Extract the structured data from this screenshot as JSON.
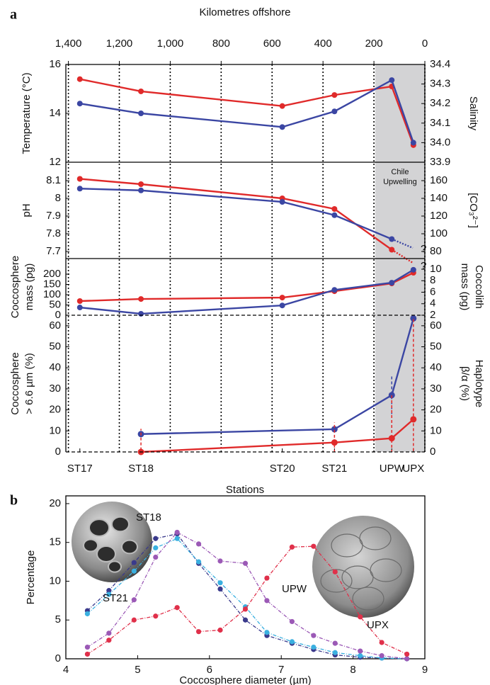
{
  "panel_a": {
    "label": "a",
    "xlabel": "Kilometres offshore",
    "xlim": [
      1410,
      0
    ],
    "xticks": [
      {
        "value": 1400,
        "label": "1,400"
      },
      {
        "value": 1200,
        "label": "1,200"
      },
      {
        "value": 1000,
        "label": "1,000"
      },
      800,
      600,
      400,
      200,
      0
    ],
    "grid": true,
    "x_station": [
      1355,
      1115,
      560,
      355,
      130,
      45
    ],
    "stations": [
      "ST17",
      "ST18",
      "ST20",
      "ST21",
      "UPW",
      "UPX"
    ],
    "stations_label": "Stations",
    "shade": [
      195,
      0
    ],
    "shade_label": [
      "Chile",
      "Upwelling"
    ],
    "shade_color": "#d3d3d5"
  },
  "panel_b": {
    "label": "b"
  },
  "chart_data": [
    {
      "type": "line",
      "ylabel": "Temperature (°C)",
      "y2label": "Salinity",
      "ylim": [
        12,
        16
      ],
      "yticks": [
        12,
        14,
        16
      ],
      "y2lim": [
        33.9,
        34.4
      ],
      "y2ticks": [
        33.9,
        {
          "value": 34,
          "label": "34.0"
        },
        34.1,
        34.2,
        34.3,
        34.4
      ],
      "series": [
        {
          "color": "#e02a2a",
          "values": [
            15.4,
            14.9,
            14.3,
            14.75,
            15.1,
            12.7
          ]
        },
        {
          "color": "#3b46a3",
          "axis": "y2",
          "values": [
            34.2,
            34.15,
            34.08,
            34.16,
            34.32,
            34.0
          ]
        }
      ]
    },
    {
      "type": "line",
      "ylabel": "pH",
      "y2label": "[CO₃²⁻]",
      "ylim": [
        7.66,
        8.204
      ],
      "yticks": [
        7.7,
        7.8,
        7.9,
        8,
        8.1
      ],
      "y2lim": [
        72,
        180.8
      ],
      "y2ticks": [
        80,
        100,
        120,
        140,
        160
      ],
      "series": [
        {
          "color": "#e02a2a",
          "values": [
            8.11,
            8.08,
            8.0,
            7.94,
            7.71,
            null
          ]
        },
        {
          "color": "#3b46a3",
          "axis": "y2",
          "values": [
            151,
            149,
            136,
            121,
            94,
            null
          ]
        }
      ],
      "annotations": [
        "?",
        "?"
      ]
    },
    {
      "type": "line",
      "ylabel": [
        "Coccosphere",
        "mass (pg)"
      ],
      "y2label": [
        "Coccolith",
        "mass (pg)"
      ],
      "ylim": [
        0,
        276
      ],
      "yticks": [
        0,
        50,
        100,
        150,
        200
      ],
      "y2lim": [
        2,
        11.85
      ],
      "y2ticks": [
        2,
        4,
        6,
        8,
        10
      ],
      "series": [
        {
          "color": "#e02a2a",
          "values": [
            69,
            79,
            86,
            117,
            155,
            207
          ]
        },
        {
          "color": "#3b46a3",
          "axis": "y2",
          "values": [
            3.35,
            2.25,
            3.7,
            6.4,
            7.65,
            9.9
          ]
        }
      ]
    },
    {
      "type": "line",
      "ylabel": [
        "Coccosphere",
        "> 6.6 µm (%)"
      ],
      "y2label": [
        "Haplotype",
        "β/α (%)"
      ],
      "x": [
        1115,
        355,
        130,
        45
      ],
      "ylim": [
        0,
        65
      ],
      "yticks": [
        0,
        10,
        20,
        30,
        40,
        50,
        60
      ],
      "y2lim": [
        0,
        65
      ],
      "y2ticks": [
        0,
        10,
        20,
        30,
        40,
        50,
        60
      ],
      "series": [
        {
          "color": "#3b46a3",
          "values": [
            8.5,
            10.8,
            27,
            63.5
          ],
          "errors": [
            null,
            null,
            9,
            null
          ]
        },
        {
          "color": "#e02a2a",
          "axis": "y2",
          "values": [
            0,
            4.5,
            6.5,
            15.5
          ],
          "errors": [
            11,
            9.5,
            21,
            48
          ]
        }
      ]
    },
    {
      "type": "line",
      "ylabel": "Percentage",
      "xlabel": "Coccosphere diameter (µm)",
      "xlim": [
        4,
        9
      ],
      "xticks": [
        4,
        5,
        6,
        7,
        8,
        9
      ],
      "ylim": [
        0,
        21
      ],
      "yticks": [
        0,
        5,
        10,
        15,
        20
      ],
      "x": [
        4.3,
        4.6,
        4.95,
        5.25,
        5.55,
        5.85,
        6.15,
        6.5,
        6.8,
        7.15,
        7.45,
        7.75,
        8.1,
        8.4,
        8.75
      ],
      "series": [
        {
          "name": "ST18",
          "color": "#3a3a8c",
          "values": [
            6.2,
            8.8,
            12.4,
            15.5,
            16.1,
            12.3,
            9.0,
            5.0,
            3.0,
            2.0,
            1.2,
            0.5,
            0.2,
            0.1,
            0
          ]
        },
        {
          "name": "ST21",
          "color": "#3ab0e0",
          "values": [
            5.8,
            8.3,
            11.3,
            14.3,
            15.5,
            12.5,
            9.8,
            6.7,
            3.4,
            2.2,
            1.5,
            0.8,
            0.4,
            0.1,
            0
          ]
        },
        {
          "name": "UPW",
          "color": "#9b59b6",
          "values": [
            1.5,
            3.3,
            7.6,
            13.1,
            16.3,
            14.8,
            12.6,
            12.3,
            7.5,
            4.8,
            3.0,
            2.0,
            1.0,
            0.4,
            0
          ]
        },
        {
          "name": "UPX",
          "color": "#e0304a",
          "values": [
            0.6,
            2.4,
            5.0,
            5.5,
            6.6,
            3.5,
            3.7,
            6.4,
            10.4,
            14.4,
            14.5,
            11.2,
            5.4,
            2.1,
            0.6
          ]
        }
      ]
    }
  ]
}
